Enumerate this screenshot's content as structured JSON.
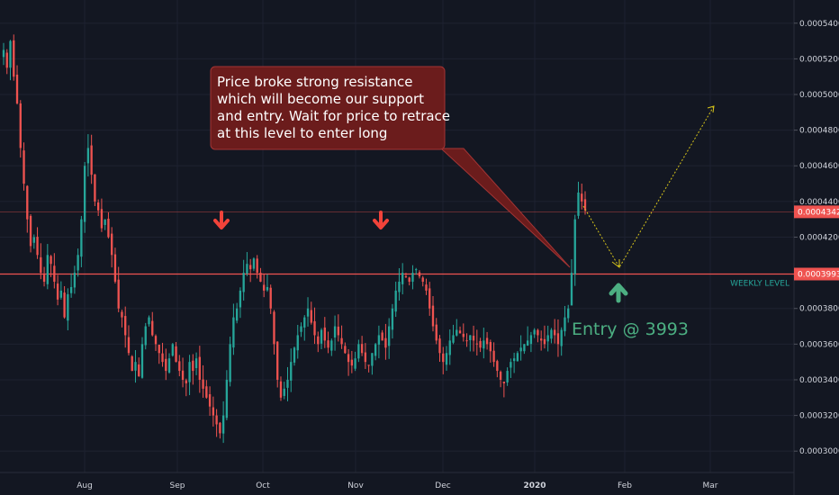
{
  "chart_data": {
    "type": "candlestick",
    "y_axis_labels": [
      "0.0005400",
      "0.0005200",
      "0.0005000",
      "0.0004800",
      "0.0004600",
      "0.0004400",
      "0.0004200",
      "0.0003800",
      "0.0003600",
      "0.0003400",
      "0.0003200",
      "0.0003000"
    ],
    "x_axis_labels": [
      "Aug",
      "Sep",
      "Oct",
      "Nov",
      "Dec",
      "2020",
      "Feb",
      "Mar"
    ],
    "ylim": [
      0.000288,
      0.000553
    ],
    "colors": {
      "up": "#26a69a",
      "down": "#ef5350",
      "background": "#131722",
      "level": "#ef5350",
      "projection": "#d4c21a",
      "callout_bg": "#6b1c1c",
      "callout_border": "#a33434"
    },
    "closes": [
      0.000525,
      0.000515,
      0.00053,
      0.00051,
      0.000495,
      0.00047,
      0.00045,
      0.00043,
      0.000415,
      0.00042,
      0.00041,
      0.0004,
      0.000395,
      0.00041,
      0.000405,
      0.000395,
      0.000385,
      0.00039,
      0.000375,
      0.000388,
      0.000392,
      0.0004,
      0.00041,
      0.00043,
      0.00046,
      0.00047,
      0.000455,
      0.00044,
      0.000435,
      0.000425,
      0.00043,
      0.00042,
      0.00041,
      0.000395,
      0.00038,
      0.000375,
      0.000365,
      0.000355,
      0.000345,
      0.00035,
      0.000342,
      0.00036,
      0.00037,
      0.000375,
      0.000365,
      0.00036,
      0.000355,
      0.00035,
      0.000345,
      0.000352,
      0.00036,
      0.00035,
      0.000345,
      0.00034,
      0.000338,
      0.00035,
      0.000345,
      0.000352,
      0.00034,
      0.000335,
      0.00033,
      0.000325,
      0.00032,
      0.000315,
      0.00031,
      0.00032,
      0.00034,
      0.00036,
      0.000375,
      0.00038,
      0.00039,
      0.0004,
      0.000405,
      0.000402,
      0.000408,
      0.0004,
      0.000395,
      0.00039,
      0.000392,
      0.00038,
      0.00036,
      0.00034,
      0.00033,
      0.000335,
      0.00034,
      0.00035,
      0.000358,
      0.000365,
      0.00037,
      0.000375,
      0.00038,
      0.000372,
      0.000365,
      0.00036,
      0.000368,
      0.000362,
      0.000358,
      0.000362,
      0.00037,
      0.000365,
      0.00036,
      0.000355,
      0.00035,
      0.000348,
      0.000352,
      0.00036,
      0.000355,
      0.00035,
      0.000348,
      0.000355,
      0.00036,
      0.000365,
      0.000362,
      0.000358,
      0.00037,
      0.00038,
      0.00039,
      0.000395,
      0.0004,
      0.000398,
      0.000395,
      0.0004,
      0.000402,
      0.000398,
      0.000395,
      0.00039,
      0.00038,
      0.00037,
      0.000362,
      0.000355,
      0.00035,
      0.000355,
      0.000362,
      0.000365,
      0.000368,
      0.000366,
      0.000364,
      0.000362,
      0.000365,
      0.000362,
      0.00036,
      0.000358,
      0.000362,
      0.00036,
      0.000356,
      0.00035,
      0.000345,
      0.00034,
      0.000338,
      0.000345,
      0.00035,
      0.000352,
      0.000355,
      0.000358,
      0.00036,
      0.000362,
      0.000365,
      0.000368,
      0.000365,
      0.000362,
      0.00036,
      0.000365,
      0.000368,
      0.000365,
      0.00036,
      0.000368,
      0.000375,
      0.00038,
      0.0004,
      0.00043,
      0.000445,
      0.00044,
      0.000435
    ],
    "annotations": {
      "callout": [
        "Price broke strong resistance",
        "which will become our support",
        "and entry. Wait for price to retrace",
        "at this level to enter long"
      ],
      "entry": "Entry @ 3993",
      "level_label": "WEEKLY LEVEL",
      "level_value": 0.0003993,
      "level_badge": "0.0003993",
      "current_value": 0.0004342,
      "current_badge": "0.0004342"
    }
  }
}
